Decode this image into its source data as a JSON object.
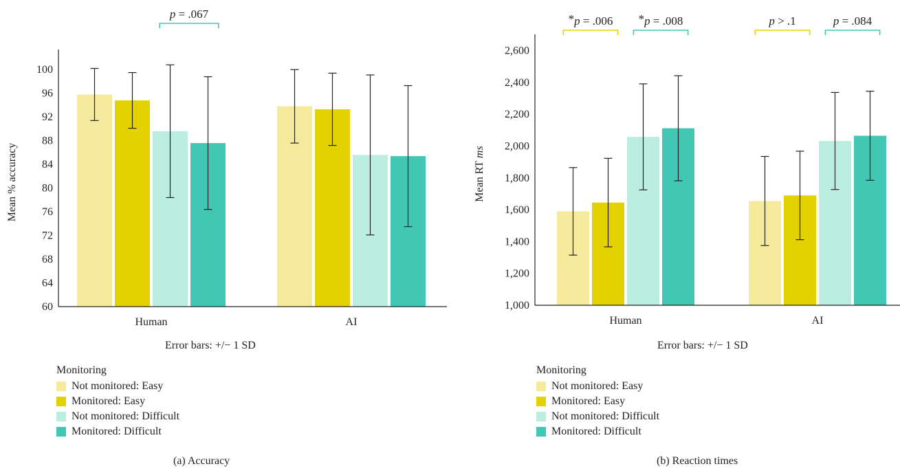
{
  "colors": {
    "not_monitored_easy": "#f5e99c",
    "monitored_easy": "#e3d200",
    "not_monitored_difficult": "#bcede1",
    "monitored_difficult": "#41c7b3",
    "bracket_easy": "#e3d200",
    "bracket_difficult": "#41c7b3"
  },
  "legend": {
    "title": "Monitoring",
    "items": [
      "Not monitored: Easy",
      "Monitored: Easy",
      "Not monitored: Difficult",
      "Monitored: Difficult"
    ]
  },
  "chart_data": [
    {
      "type": "bar",
      "caption": "(a) Accuracy",
      "ylabel": "Mean % accuracy",
      "xlabel": "",
      "note": "Error bars: +/− 1 SD",
      "ylim": [
        60,
        102
      ],
      "yticks": [
        60,
        64,
        68,
        72,
        76,
        80,
        84,
        88,
        92,
        96,
        100
      ],
      "ytick_labels": [
        "60",
        "64",
        "68",
        "72",
        "76",
        "80",
        "84",
        "88",
        "92",
        "96",
        "100"
      ],
      "categories": [
        "Human",
        "AI"
      ],
      "series": [
        {
          "name": "Not monitored: Easy",
          "values": [
            95.8,
            93.8
          ],
          "sd": [
            4.4,
            6.2
          ]
        },
        {
          "name": "Monitored: Easy",
          "values": [
            94.8,
            93.3
          ],
          "sd": [
            4.7,
            6.1
          ]
        },
        {
          "name": "Not monitored: Difficult",
          "values": [
            89.6,
            85.6
          ],
          "sd": [
            11.2,
            13.5
          ]
        },
        {
          "name": "Monitored: Difficult",
          "values": [
            87.6,
            85.4
          ],
          "sd": [
            11.2,
            11.9
          ]
        }
      ],
      "annotations": [
        {
          "text": "p = .067",
          "group": 0,
          "from_series": 2,
          "to_series": 3,
          "color_key": "bracket_difficult"
        }
      ]
    },
    {
      "type": "bar",
      "caption": "(b) Reaction times",
      "ylabel": "Mean RT ms",
      "ylabel_plain": "Mean RT",
      "ylabel_italic": "ms",
      "xlabel": "",
      "note": "Error bars: +/− 1 SD",
      "ylim": [
        1000,
        2650
      ],
      "yticks": [
        1000,
        1200,
        1400,
        1600,
        1800,
        2000,
        2200,
        2400,
        2600
      ],
      "ytick_labels": [
        "1,000",
        "1,200",
        "1,400",
        "1,600",
        "1,800",
        "2,000",
        "2,200",
        "2,400",
        "2,600"
      ],
      "categories": [
        "Human",
        "AI"
      ],
      "series": [
        {
          "name": "Not monitored: Easy",
          "values": [
            1590,
            1655
          ],
          "sd": [
            275,
            280
          ]
        },
        {
          "name": "Monitored: Easy",
          "values": [
            1645,
            1690
          ],
          "sd": [
            278,
            278
          ]
        },
        {
          "name": "Not monitored: Difficult",
          "values": [
            2058,
            2032
          ],
          "sd": [
            333,
            305
          ]
        },
        {
          "name": "Monitored: Difficult",
          "values": [
            2112,
            2065
          ],
          "sd": [
            330,
            280
          ]
        }
      ],
      "annotations": [
        {
          "text": "*p = .006",
          "group": 0,
          "from_series": 0,
          "to_series": 1,
          "color_key": "bracket_easy"
        },
        {
          "text": "*p = .008",
          "group": 0,
          "from_series": 2,
          "to_series": 3,
          "color_key": "bracket_difficult"
        },
        {
          "text": "p > .1",
          "group": 1,
          "from_series": 0,
          "to_series": 1,
          "color_key": "bracket_easy"
        },
        {
          "text": "p = .084",
          "group": 1,
          "from_series": 2,
          "to_series": 3,
          "color_key": "bracket_difficult"
        }
      ]
    }
  ]
}
